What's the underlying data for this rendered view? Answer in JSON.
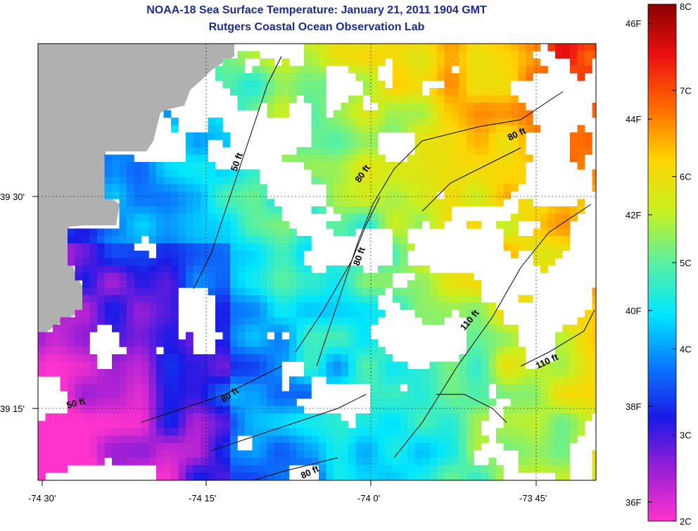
{
  "title": "NOAA-18 Sea Surface Temperature:  January 21, 2011 1904 GMT",
  "subtitle": "Rutgers Coastal Ocean Observation Lab",
  "map": {
    "lon_ticks": [
      "-74 30'",
      "-74 15'",
      "-74 0'",
      "-73 45'"
    ],
    "lat_ticks": [
      "39 30'",
      "39 15'"
    ],
    "contour_labels": [
      "50 ft",
      "80 ft",
      "80 ft",
      "80 ft",
      "110 ft",
      "110 ft",
      "50 ft",
      "80 ft",
      "80 ft"
    ],
    "land_color": "#b0b0b0",
    "cloud_color": "#ffffff"
  },
  "colorbar": {
    "fahrenheit_ticks": [
      "46F",
      "44F",
      "42F",
      "40F",
      "38F",
      "36F"
    ],
    "celsius_ticks": [
      "8C",
      "7C",
      "6C",
      "5C",
      "4C",
      "3C",
      "2C"
    ],
    "min_c": 2,
    "max_c": 8,
    "colors": [
      "#ff33cc",
      "#9a1fd6",
      "#1a1ae6",
      "#0a7aff",
      "#00e6ff",
      "#5af0a0",
      "#c8f020",
      "#ffd400",
      "#ff6a00",
      "#ee1010",
      "#8a0000"
    ]
  }
}
